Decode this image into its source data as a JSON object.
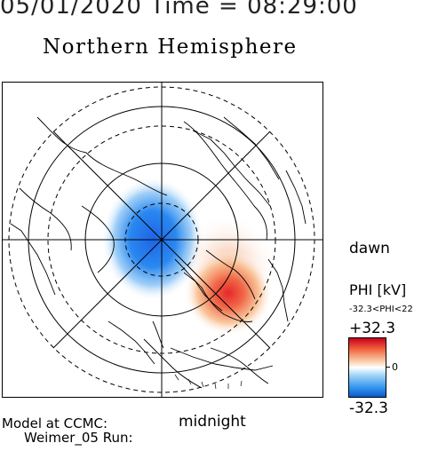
{
  "header": {
    "datetime": "05/01/2020 Time = 08:29:00",
    "hemisphere": "Northern Hemisphere"
  },
  "map": {
    "side_label": "dawn",
    "bottom_label": "midnight",
    "description_layers": [
      "coastlines",
      "latitude-circles",
      "meridians",
      "potential-pattern"
    ]
  },
  "colorbar": {
    "title": "PHI [kV]",
    "range_text": "-32.3<PHI<22",
    "max_label": "+32.3",
    "zero_label": "0",
    "min_label": "-32.3",
    "colors": {
      "positive": "#c8001e",
      "neutral": "#ffffff",
      "negative": "#0a5ad0"
    }
  },
  "footer": {
    "line1": "Model at CCMC:",
    "line2": "Weimer_05 Run:"
  }
}
